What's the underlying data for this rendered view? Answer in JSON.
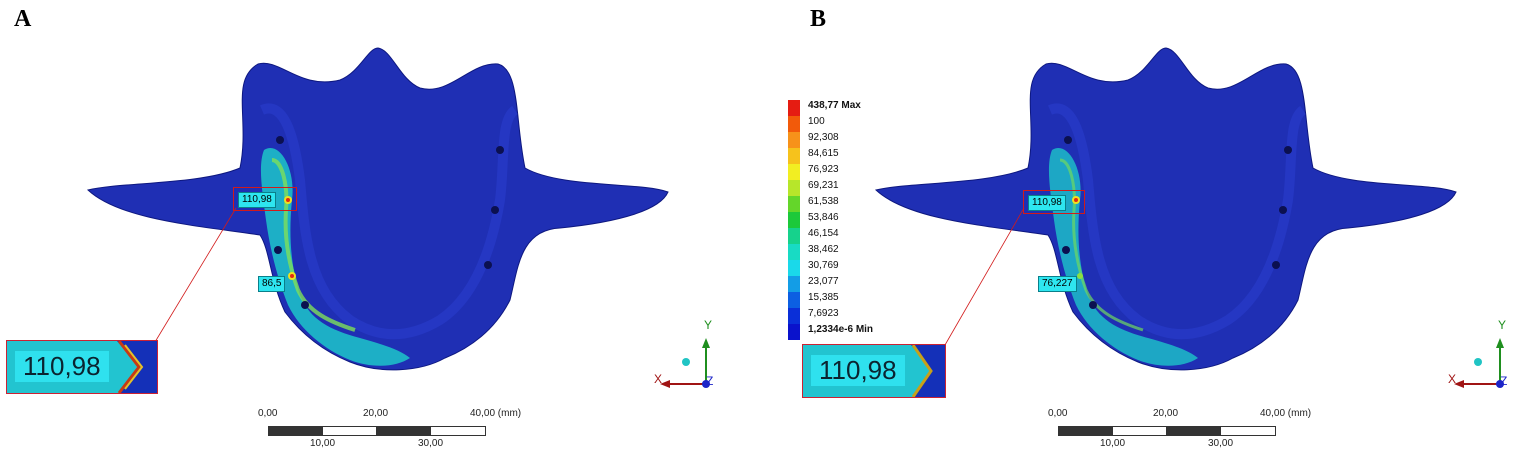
{
  "panels": [
    {
      "letter": "A",
      "probes": [
        "110,98",
        "86,5"
      ],
      "zoom_value": "110,98"
    },
    {
      "letter": "B",
      "probes": [
        "110,98",
        "76,227"
      ],
      "zoom_value": "110,98"
    }
  ],
  "legend": {
    "entries": [
      {
        "label": "438,77 Max",
        "color": "#e51c12"
      },
      {
        "label": "100",
        "color": "#f25a0a"
      },
      {
        "label": "92,308",
        "color": "#f7921a"
      },
      {
        "label": "84,615",
        "color": "#f6c21c"
      },
      {
        "label": "76,923",
        "color": "#f2ee22"
      },
      {
        "label": "69,231",
        "color": "#b7e62a"
      },
      {
        "label": "61,538",
        "color": "#64d62a"
      },
      {
        "label": "53,846",
        "color": "#1cc93a"
      },
      {
        "label": "46,154",
        "color": "#16d28c"
      },
      {
        "label": "38,462",
        "color": "#18dbc4"
      },
      {
        "label": "30,769",
        "color": "#1ad9ea"
      },
      {
        "label": "23,077",
        "color": "#139de6"
      },
      {
        "label": "15,385",
        "color": "#0c5fe2"
      },
      {
        "label": "7,6923",
        "color": "#0a2fd8"
      },
      {
        "label": "1,2334e-6 Min",
        "color": "#0a12cc"
      }
    ]
  },
  "scalebar": {
    "top_labels": [
      "0,00",
      "20,00",
      "40,00 (mm)"
    ],
    "bottom_labels": [
      "10,00",
      "30,00"
    ]
  },
  "axes": {
    "x": "X",
    "y": "Y",
    "z": "Z"
  }
}
